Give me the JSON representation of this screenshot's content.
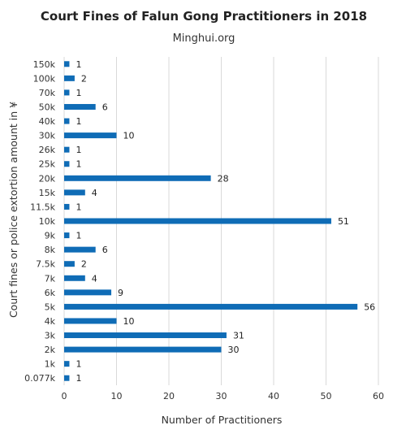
{
  "chart_data": {
    "type": "bar",
    "orientation": "horizontal",
    "title": "Court Fines of Falun Gong Practitioners in 2018",
    "subtitle": "Minghui.org",
    "xlabel": "Number  of Practitioners",
    "ylabel": "Court fines or police extortion amount in ¥",
    "xlim": [
      0,
      60
    ],
    "xticks": [
      0,
      10,
      20,
      30,
      40,
      50,
      60
    ],
    "grid": true,
    "bar_color": "#0f6cb6",
    "categories": [
      "150k",
      "100k",
      "70k",
      "50k",
      "40k",
      "30k",
      "26k",
      "25k",
      "20k",
      "15k",
      "11.5k",
      "10k",
      "9k",
      "8k",
      "7.5k",
      "7k",
      "6k",
      "5k",
      "4k",
      "3k",
      "2k",
      "1k",
      "0.077k"
    ],
    "values": [
      1,
      2,
      1,
      6,
      1,
      10,
      1,
      1,
      28,
      4,
      1,
      51,
      1,
      6,
      2,
      4,
      9,
      56,
      10,
      31,
      30,
      1,
      1
    ]
  }
}
